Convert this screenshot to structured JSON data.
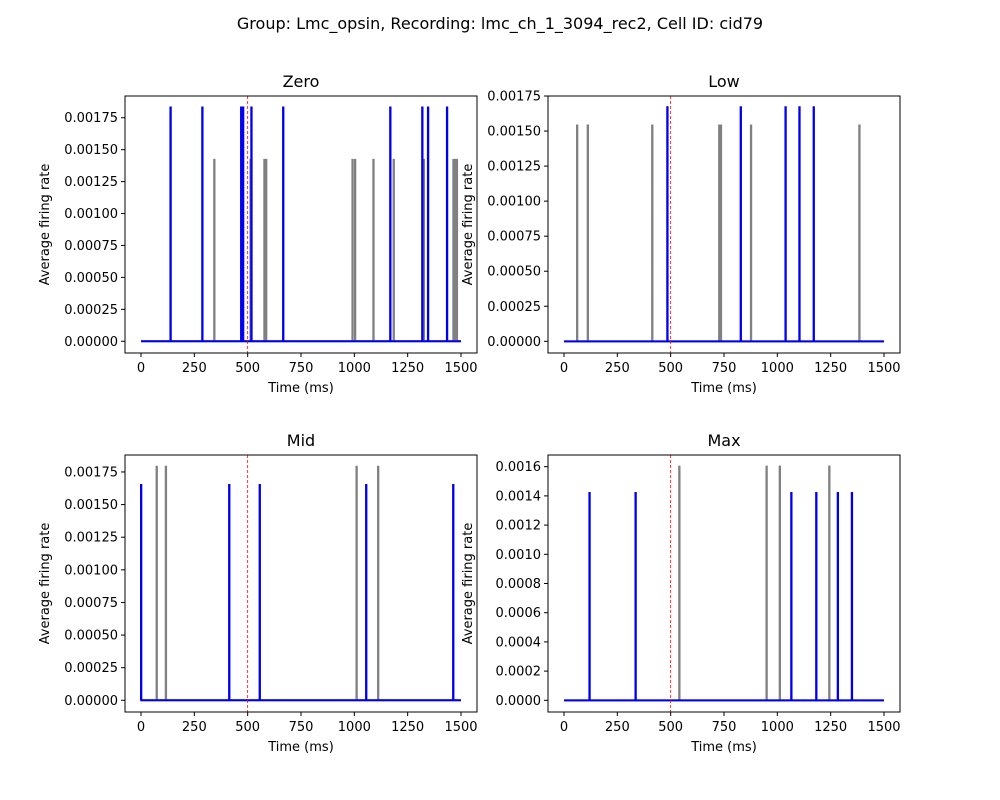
{
  "figure": {
    "suptitle": "Group: Lmc_opsin, Recording: lmc_ch_1_3094_rec2, Cell ID: cid79"
  },
  "chart_data": [
    {
      "type": "line",
      "title": "Zero",
      "xlabel": "Time (ms)",
      "ylabel": "Average firing rate",
      "xlim": [
        -75,
        1575
      ],
      "ylim": [
        -9.17e-05,
        0.00192
      ],
      "xticks": [
        0,
        250,
        500,
        750,
        1000,
        1250,
        1500
      ],
      "xtick_labels": [
        "0",
        "250",
        "500",
        "750",
        "1000",
        "1250",
        "1500"
      ],
      "yticks": [
        0,
        0.00025,
        0.0005,
        0.00075,
        0.001,
        0.00125,
        0.0015,
        0.00175
      ],
      "ytick_labels": [
        "0.00000",
        "0.00025",
        "0.00050",
        "0.00075",
        "0.00100",
        "0.00125",
        "0.00150",
        "0.00175"
      ],
      "stimulus_onset_ms": 500,
      "series": [
        {
          "color": "#808080",
          "spike_height": 0.00142,
          "spike_times": [
            343,
            513,
            578,
            586,
            991,
            1003,
            1089,
            1184,
            1325,
            1464,
            1472,
            1480
          ]
        },
        {
          "color": "#0000ee",
          "spike_height": 0.00183,
          "spike_times": [
            138,
            287,
            469,
            478,
            517,
            666,
            1168,
            1318,
            1345,
            1434
          ]
        }
      ]
    },
    {
      "type": "line",
      "title": "Low",
      "xlabel": "Time (ms)",
      "ylabel": "Average firing rate",
      "xlim": [
        -75,
        1575
      ],
      "ylim": [
        -8.33e-05,
        0.00175
      ],
      "xticks": [
        0,
        250,
        500,
        750,
        1000,
        1250,
        1500
      ],
      "xtick_labels": [
        "0",
        "250",
        "500",
        "750",
        "1000",
        "1250",
        "1500"
      ],
      "yticks": [
        0,
        0.00025,
        0.0005,
        0.00075,
        0.001,
        0.00125,
        0.0015,
        0.00175
      ],
      "ytick_labels": [
        "0.00000",
        "0.00025",
        "0.00050",
        "0.00075",
        "0.00100",
        "0.00125",
        "0.00150",
        "0.00175"
      ],
      "stimulus_onset_ms": 500,
      "series": [
        {
          "color": "#808080",
          "spike_height": 0.00154,
          "spike_times": [
            61,
            111,
            413,
            727,
            735,
            876,
            1384
          ]
        },
        {
          "color": "#0000ee",
          "spike_height": 0.00167,
          "spike_times": [
            484,
            828,
            1038,
            1103,
            1170
          ]
        }
      ]
    },
    {
      "type": "line",
      "title": "Mid",
      "xlabel": "Time (ms)",
      "ylabel": "Average firing rate",
      "xlim": [
        -75,
        1575
      ],
      "ylim": [
        -8.97e-05,
        0.00188
      ],
      "xticks": [
        0,
        250,
        500,
        750,
        1000,
        1250,
        1500
      ],
      "xtick_labels": [
        "0",
        "250",
        "500",
        "750",
        "1000",
        "1250",
        "1500"
      ],
      "yticks": [
        0,
        0.00025,
        0.0005,
        0.00075,
        0.001,
        0.00125,
        0.0015,
        0.00175
      ],
      "ytick_labels": [
        "0.00000",
        "0.00025",
        "0.00050",
        "0.00075",
        "0.00100",
        "0.00125",
        "0.00150",
        "0.00175"
      ],
      "stimulus_onset_ms": 500,
      "series": [
        {
          "color": "#808080",
          "spike_height": 0.00179,
          "spike_times": [
            73,
            116,
            1010,
            1111
          ]
        },
        {
          "color": "#0000ee",
          "spike_height": 0.00165,
          "spike_times": [
            0,
            413,
            556,
            1055,
            1463
          ]
        }
      ]
    },
    {
      "type": "line",
      "title": "Max",
      "xlabel": "Time (ms)",
      "ylabel": "Average firing rate",
      "xlim": [
        -75,
        1575
      ],
      "ylim": [
        -8e-05,
        0.00168
      ],
      "xticks": [
        0,
        250,
        500,
        750,
        1000,
        1250,
        1500
      ],
      "xtick_labels": [
        "0",
        "250",
        "500",
        "750",
        "1000",
        "1250",
        "1500"
      ],
      "yticks": [
        0,
        0.0002,
        0.0004,
        0.0006,
        0.0008,
        0.001,
        0.0012,
        0.0014,
        0.0016
      ],
      "ytick_labels": [
        "0.0000",
        "0.0002",
        "0.0004",
        "0.0006",
        "0.0008",
        "0.0010",
        "0.0012",
        "0.0014",
        "0.0016"
      ],
      "stimulus_onset_ms": 500,
      "series": [
        {
          "color": "#808080",
          "spike_height": 0.0016,
          "spike_times": [
            540,
            949,
            1011,
            1243
          ]
        },
        {
          "color": "#0000ee",
          "spike_height": 0.00142,
          "spike_times": [
            119,
            335,
            1065,
            1182,
            1283,
            1349
          ]
        }
      ]
    }
  ]
}
